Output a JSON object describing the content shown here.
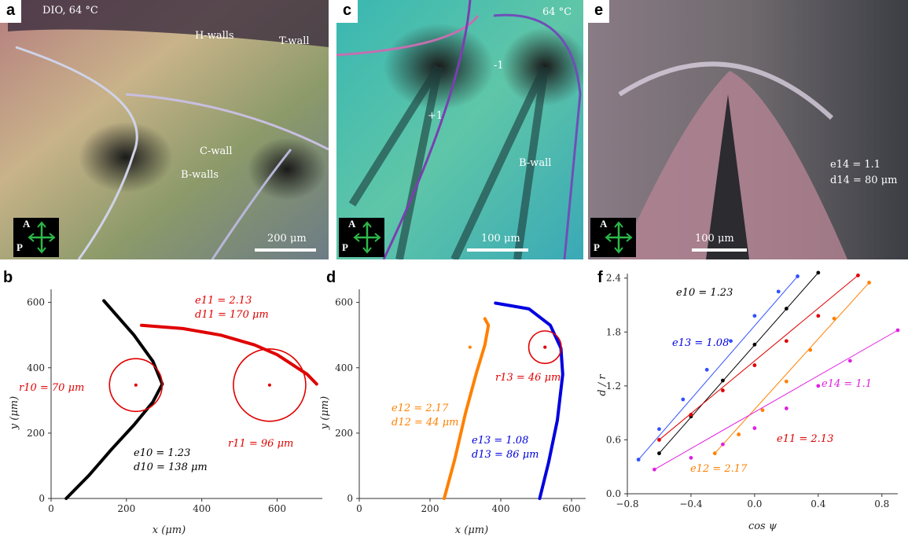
{
  "panels": {
    "a": {
      "label": "a",
      "condition": "DIO, 64 °C",
      "annotations": [
        "H-walls",
        "T-wall",
        "C-wall",
        "B-walls"
      ],
      "scalebar": "200 μm",
      "polarizer": {
        "a": "A",
        "p": "P"
      }
    },
    "c": {
      "label": "c",
      "condition": "64 °C",
      "annotations": [
        "-1",
        "+1",
        "B-wall"
      ],
      "scalebar": "100 μm",
      "polarizer": {
        "a": "A",
        "p": "P"
      }
    },
    "e": {
      "label": "e",
      "annotations": [
        "e14 = 1.1",
        "d14 = 80 μm"
      ],
      "scalebar": "100 μm",
      "polarizer": {
        "a": "A",
        "p": "P"
      }
    },
    "b": {
      "label": "b"
    },
    "d": {
      "label": "d"
    },
    "f": {
      "label": "f"
    }
  },
  "chart_data": [
    {
      "type": "line",
      "panel": "b",
      "xlabel": "x (μm)",
      "ylabel": "y (μm)",
      "xlim": [
        0,
        720
      ],
      "ylim": [
        0,
        640
      ],
      "xticks": [
        0,
        200,
        400,
        600
      ],
      "yticks": [
        0,
        200,
        400,
        600
      ],
      "series": [
        {
          "color": "#000000",
          "x": [
            40,
            100,
            160,
            220,
            270,
            295,
            270,
            220,
            140
          ],
          "y": [
            0,
            70,
            150,
            225,
            295,
            350,
            420,
            500,
            605
          ]
        },
        {
          "color": "#e00000",
          "x": [
            240,
            350,
            450,
            540,
            600,
            640,
            680,
            705
          ],
          "y": [
            530,
            520,
            500,
            470,
            440,
            410,
            380,
            350
          ]
        }
      ],
      "circles": [
        {
          "cx": 225,
          "cy": 347,
          "r": 70,
          "color": "#e00000"
        },
        {
          "cx": 580,
          "cy": 347,
          "r": 96,
          "color": "#e00000"
        }
      ],
      "annotations": [
        {
          "lines": [
            "e11 = 2.13",
            "d11 = 170 μm"
          ],
          "color": "#e00000"
        },
        {
          "lines": [
            "r10 = 70 μm"
          ],
          "color": "#e00000"
        },
        {
          "lines": [
            "r11 = 96 μm"
          ],
          "color": "#e00000"
        },
        {
          "lines": [
            "e10 = 1.23",
            "d10 = 138 μm"
          ],
          "color": "#000000"
        }
      ]
    },
    {
      "type": "line",
      "panel": "d",
      "xlabel": "x (μm)",
      "ylabel": "y (μm)",
      "xlim": [
        0,
        640
      ],
      "ylim": [
        0,
        640
      ],
      "xticks": [
        0,
        200,
        400,
        600
      ],
      "yticks": [
        0,
        200,
        400,
        600
      ],
      "series": [
        {
          "color": "#ff8000",
          "x": [
            240,
            270,
            300,
            330,
            355,
            365,
            355
          ],
          "y": [
            0,
            120,
            260,
            380,
            470,
            530,
            550
          ]
        },
        {
          "color": "#0000e0",
          "x": [
            510,
            535,
            560,
            575,
            570,
            540,
            480,
            385
          ],
          "y": [
            0,
            110,
            240,
            380,
            460,
            530,
            580,
            598
          ]
        }
      ],
      "points": [
        {
          "x": 313,
          "y": 463,
          "color": "#ff8000"
        },
        {
          "x": 525,
          "y": 463,
          "color": "#e00000"
        }
      ],
      "circles": [
        {
          "cx": 525,
          "cy": 463,
          "r": 46,
          "color": "#e00000"
        }
      ],
      "annotations": [
        {
          "lines": [
            "r13 = 46 μm"
          ],
          "color": "#e00000"
        },
        {
          "lines": [
            "e12 = 2.17",
            "d12 = 44 μm"
          ],
          "color": "#ff8000"
        },
        {
          "lines": [
            "e13 = 1.08",
            "d13 = 86 μm"
          ],
          "color": "#0000e0"
        }
      ]
    },
    {
      "type": "scatter",
      "panel": "f",
      "xlabel": "cos ψ",
      "ylabel": "d / r",
      "xlim": [
        -0.8,
        0.9
      ],
      "ylim": [
        0.0,
        2.45
      ],
      "xticks": [
        -0.8,
        -0.4,
        0.0,
        0.4,
        0.8
      ],
      "xtick_labels": [
        "−0.8",
        "−0.4",
        "0.0",
        "0.4",
        "0.8"
      ],
      "yticks": [
        0.0,
        0.6,
        1.2,
        1.8,
        2.4
      ],
      "series": [
        {
          "name": "e13 = 1.08",
          "color": "#3050ff",
          "x": [
            -0.73,
            -0.6,
            -0.45,
            -0.3,
            -0.15,
            0.0,
            0.15,
            0.27
          ],
          "y": [
            0.38,
            0.72,
            1.05,
            1.38,
            1.7,
            1.98,
            2.25,
            2.42
          ]
        },
        {
          "name": "e10 = 1.23",
          "color": "#000000",
          "x": [
            -0.6,
            -0.4,
            -0.2,
            0.0,
            0.2,
            0.4
          ],
          "y": [
            0.45,
            0.86,
            1.26,
            1.66,
            2.06,
            2.46
          ]
        },
        {
          "name": "e11 = 2.13",
          "color": "#e00000",
          "x": [
            -0.6,
            -0.4,
            -0.2,
            0.0,
            0.2,
            0.4,
            0.65
          ],
          "y": [
            0.6,
            0.88,
            1.15,
            1.43,
            1.7,
            1.98,
            2.43
          ]
        },
        {
          "name": "e12 = 2.17",
          "color": "#ff8000",
          "x": [
            -0.25,
            -0.1,
            0.05,
            0.2,
            0.35,
            0.5,
            0.72
          ],
          "y": [
            0.45,
            0.66,
            0.93,
            1.25,
            1.6,
            1.95,
            2.35
          ]
        },
        {
          "name": "e14 = 1.1",
          "color": "#e020e0",
          "x": [
            -0.63,
            -0.4,
            -0.2,
            0.0,
            0.2,
            0.4,
            0.6,
            0.9
          ],
          "y": [
            0.27,
            0.4,
            0.55,
            0.73,
            0.95,
            1.2,
            1.48,
            1.82
          ]
        }
      ],
      "annotations": [
        {
          "lines": [
            "e10 = 1.23"
          ],
          "color": "#000000"
        },
        {
          "lines": [
            "e13 = 1.08"
          ],
          "color": "#0000e0"
        },
        {
          "lines": [
            "e14 = 1.1"
          ],
          "color": "#e020e0"
        },
        {
          "lines": [
            "e11 = 2.13"
          ],
          "color": "#e00000"
        },
        {
          "lines": [
            "e12 = 2.17"
          ],
          "color": "#ff8000"
        }
      ]
    }
  ]
}
